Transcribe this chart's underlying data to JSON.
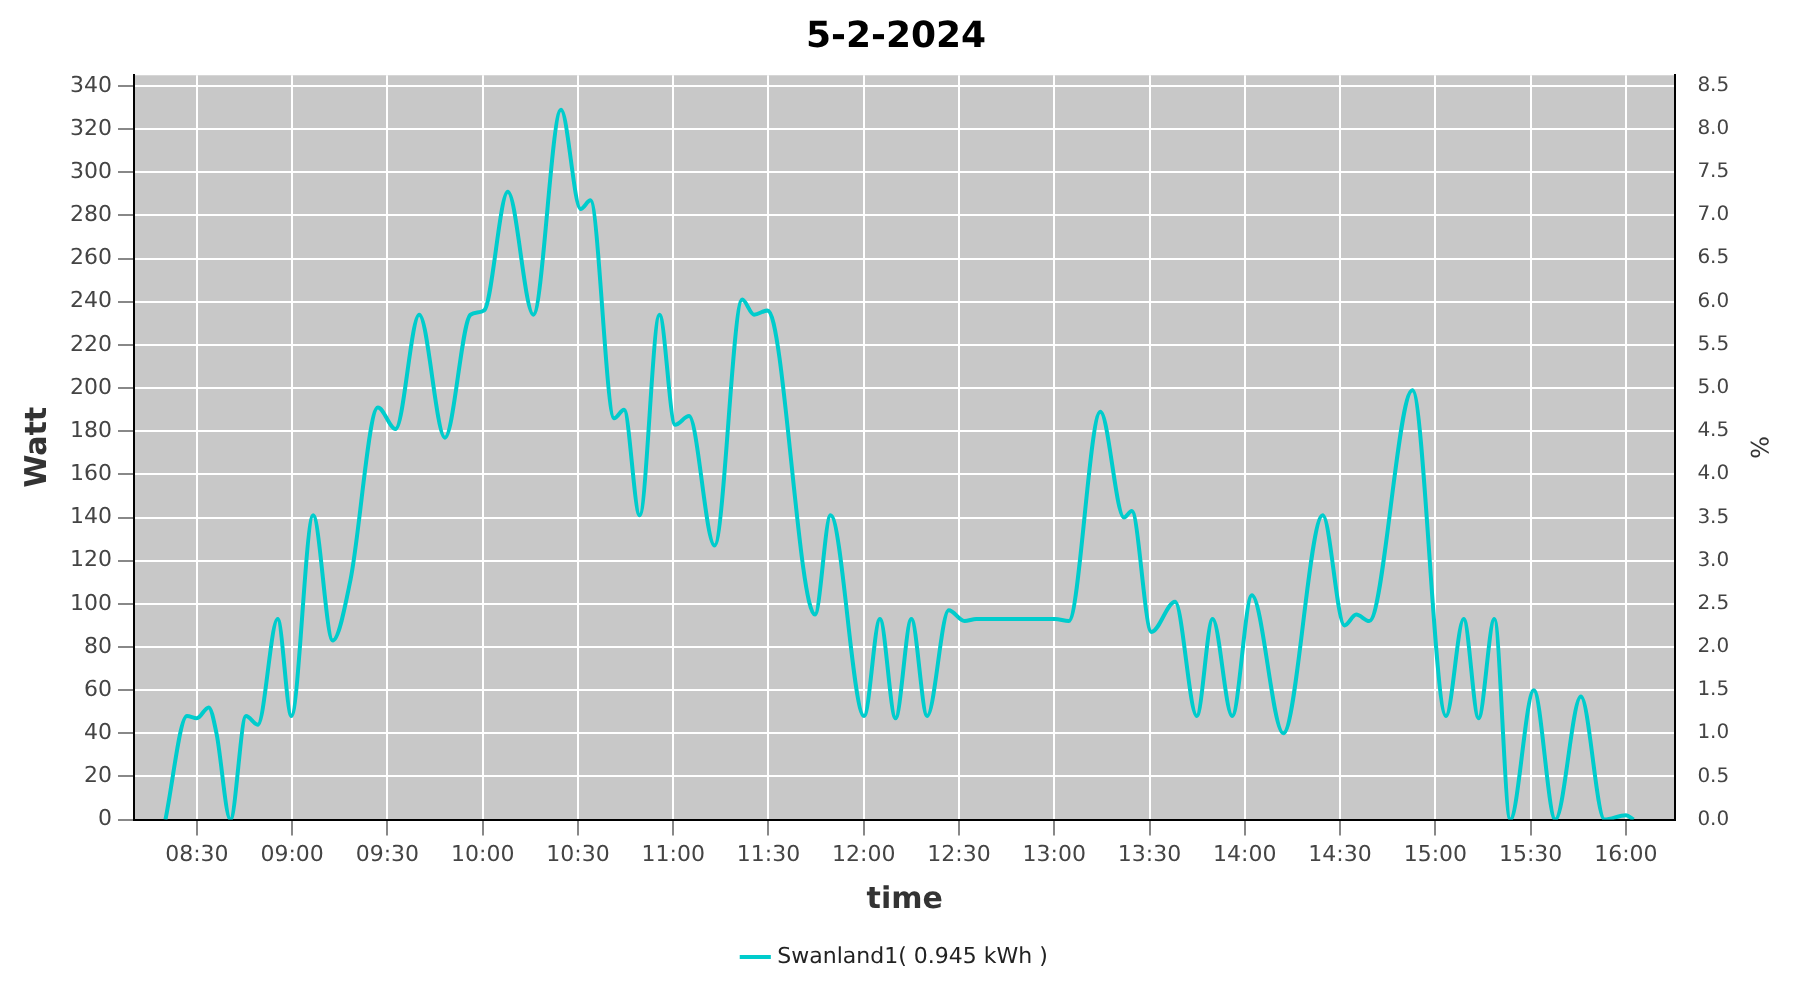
{
  "chart_data": {
    "type": "line",
    "title": "5-2-2024",
    "xlabel": "time",
    "ylabel": "Watt",
    "y2label": "%",
    "xlim": [
      8.17,
      16.26
    ],
    "xticks": [
      {
        "value": 8.5,
        "label": "08:30"
      },
      {
        "value": 9,
        "label": "09:00"
      },
      {
        "value": 9.5,
        "label": "09:30"
      },
      {
        "value": 10,
        "label": "10:00"
      },
      {
        "value": 10.5,
        "label": "10:30"
      },
      {
        "value": 11,
        "label": "11:00"
      },
      {
        "value": 11.5,
        "label": "11:30"
      },
      {
        "value": 12,
        "label": "12:00"
      },
      {
        "value": 12.5,
        "label": "12:30"
      },
      {
        "value": 13,
        "label": "13:00"
      },
      {
        "value": 13.5,
        "label": "13:30"
      },
      {
        "value": 14,
        "label": "14:00"
      },
      {
        "value": 14.5,
        "label": "14:30"
      },
      {
        "value": 15,
        "label": "15:00"
      },
      {
        "value": 15.5,
        "label": "15:30"
      },
      {
        "value": 16,
        "label": "16:00"
      }
    ],
    "ylim": [
      0,
      345
    ],
    "yticks": [
      0,
      20,
      40,
      60,
      80,
      100,
      120,
      140,
      160,
      180,
      200,
      220,
      240,
      260,
      280,
      300,
      320,
      340
    ],
    "y2lim": [
      0,
      8.62
    ],
    "y2ticks": [
      {
        "value": 0,
        "label": "0.0"
      },
      {
        "value": 0.5,
        "label": "0.5"
      },
      {
        "value": 1,
        "label": "1.0"
      },
      {
        "value": 1.5,
        "label": "1.5"
      },
      {
        "value": 2,
        "label": "2.0"
      },
      {
        "value": 2.5,
        "label": "2.5"
      },
      {
        "value": 3,
        "label": "3.0"
      },
      {
        "value": 3.5,
        "label": "3.5"
      },
      {
        "value": 4,
        "label": "4.0"
      },
      {
        "value": 4.5,
        "label": "4.5"
      },
      {
        "value": 5,
        "label": "5.0"
      },
      {
        "value": 5.5,
        "label": "5.5"
      },
      {
        "value": 6,
        "label": "6.0"
      },
      {
        "value": 6.5,
        "label": "6.5"
      },
      {
        "value": 7,
        "label": "7.0"
      },
      {
        "value": 7.5,
        "label": "7.5"
      },
      {
        "value": 8,
        "label": "8.0"
      },
      {
        "value": 8.5,
        "label": "8.5"
      }
    ],
    "grid": true,
    "legend": "bottom",
    "marker": "none",
    "line_style": "solid",
    "series": [
      {
        "name": "Swanland1( 0.945 kWh )",
        "color": "#00cccc",
        "x": [
          8.335,
          8.448,
          8.5,
          8.562,
          8.603,
          8.676,
          8.758,
          8.82,
          8.924,
          8.996,
          9.11,
          9.213,
          9.306,
          9.45,
          9.543,
          9.667,
          9.802,
          9.936,
          10.008,
          10.132,
          10.266,
          10.411,
          10.514,
          10.566,
          10.69,
          10.742,
          10.824,
          10.928,
          11.01,
          11.083,
          11.217,
          11.362,
          11.424,
          11.496,
          11.744,
          11.826,
          12.002,
          12.085,
          12.167,
          12.25,
          12.333,
          12.446,
          12.529,
          12.591,
          13.004,
          13.076,
          13.242,
          13.366,
          13.407,
          13.51,
          13.634,
          13.748,
          13.831,
          13.934,
          14.037,
          14.202,
          14.409,
          14.523,
          14.585,
          14.653,
          14.88,
          15.056,
          15.149,
          15.227,
          15.31,
          15.393,
          15.517,
          15.63,
          15.764,
          15.888,
          16.0,
          16.041
        ],
        "values": [
          0,
          48,
          47,
          52,
          40,
          0,
          48,
          44,
          93,
          48,
          141,
          83,
          111,
          191,
          181,
          234,
          177,
          234,
          236,
          291,
          234,
          329,
          283,
          287,
          186,
          190,
          141,
          234,
          183,
          187,
          127,
          241,
          234,
          236,
          95,
          141,
          48,
          93,
          47,
          93,
          48,
          97,
          92,
          93,
          93,
          92,
          189,
          140,
          143,
          87,
          101,
          48,
          93,
          48,
          104,
          40,
          141,
          90,
          95,
          92,
          199,
          48,
          93,
          47,
          93,
          0,
          60,
          0,
          57,
          0,
          2,
          0
        ]
      }
    ]
  }
}
